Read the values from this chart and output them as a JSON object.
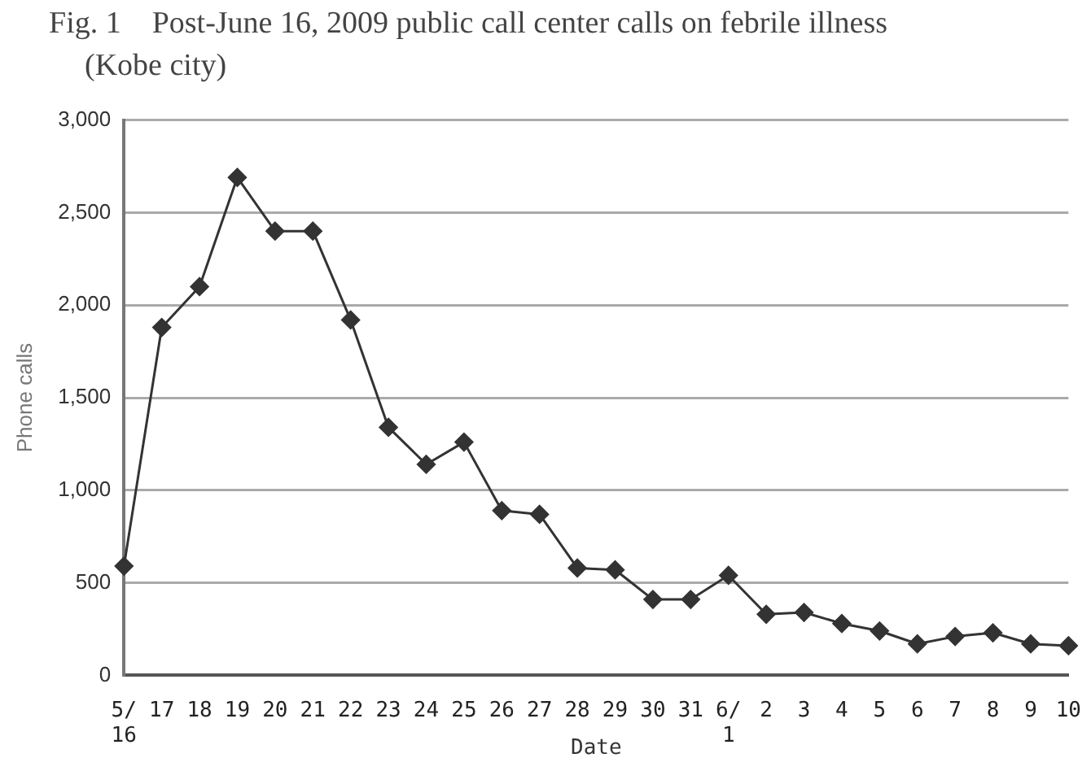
{
  "chart_data": {
    "type": "line",
    "title": "Fig. 1　Post-June 16, 2009 public call center calls on febrile illness (Kobe city)",
    "xlabel": "Date",
    "ylabel": "Phone calls",
    "categories": [
      "5/16",
      "17",
      "18",
      "19",
      "20",
      "21",
      "22",
      "23",
      "24",
      "25",
      "26",
      "27",
      "28",
      "29",
      "30",
      "31",
      "6/1",
      "2",
      "3",
      "4",
      "5",
      "6",
      "7",
      "8",
      "9",
      "10"
    ],
    "series": [
      {
        "color": "#333333",
        "values": [
          590,
          1880,
          2100,
          2690,
          2400,
          2400,
          1920,
          1340,
          1140,
          1260,
          890,
          870,
          580,
          570,
          410,
          410,
          540,
          330,
          340,
          280,
          240,
          170,
          210,
          230,
          170,
          160
        ]
      }
    ],
    "ylim": [
      0,
      3000
    ],
    "yticks": [
      0,
      500,
      {
        "value": 1000,
        "label": "1,000"
      },
      {
        "value": 1500,
        "label": "1,500"
      },
      {
        "value": 2000,
        "label": "2,000"
      },
      {
        "value": 2500,
        "label": "2,500"
      },
      {
        "value": 3000,
        "label": "3,000"
      }
    ],
    "grid": "y",
    "legend": false,
    "marker": "diamond",
    "line_style": "solid"
  }
}
